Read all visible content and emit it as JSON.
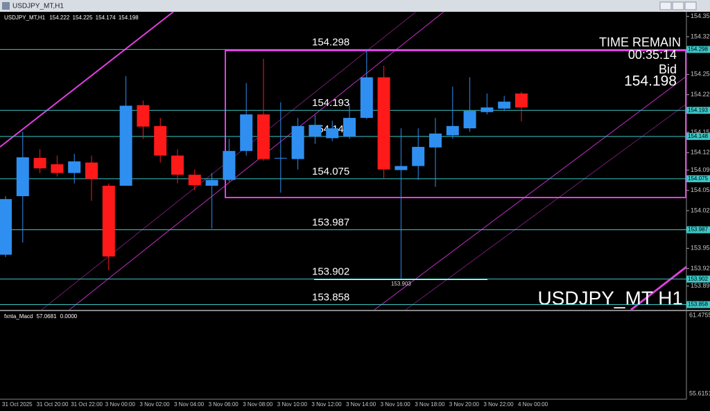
{
  "window": {
    "title": "USDJPY_MT,H1"
  },
  "chart_data": {
    "type": "candlestick",
    "symbol": "USDJPY_MT,H1",
    "watermark": "USDJPY_MT H1",
    "x": [
      "31 Oct 2025",
      null,
      "31 Oct 20:00",
      null,
      "31 Oct 22:00",
      null,
      "3 Nov 00:00",
      null,
      "3 Nov 02:00",
      null,
      "3 Nov 04:00",
      null,
      "3 Nov 06:00",
      null,
      "3 Nov 08:00",
      null,
      "3 Nov 10:00",
      null,
      "3 Nov 12:00",
      null,
      "3 Nov 14:00",
      null,
      "3 Nov 16:00",
      null,
      "3 Nov 18:00",
      null,
      "3 Nov 20:00",
      null,
      "3 Nov 22:00",
      null,
      "4 Nov 00:00"
    ],
    "open": [
      153.944,
      154.045,
      154.111,
      154.1,
      154.085,
      154.103,
      154.063,
      154.063,
      154.202,
      154.166,
      154.115,
      154.082,
      154.063,
      154.073,
      154.123,
      154.186,
      154.11,
      154.109,
      154.148,
      154.145,
      154.148,
      154.18,
      154.25,
      154.09,
      154.097,
      154.129,
      154.15,
      154.162,
      154.19,
      154.196,
      154.222
    ],
    "high": [
      154.045,
      154.156,
      154.126,
      154.115,
      154.118,
      154.115,
      154.067,
      154.252,
      154.21,
      154.18,
      154.126,
      154.091,
      154.085,
      154.144,
      154.24,
      154.282,
      154.207,
      154.18,
      154.185,
      154.175,
      154.204,
      154.297,
      154.27,
      154.162,
      154.162,
      154.18,
      154.234,
      154.25,
      154.222,
      154.218,
      154.225
    ],
    "low": [
      153.94,
      153.965,
      154.085,
      154.079,
      154.067,
      154.037,
      153.917,
      154.063,
      154.144,
      154.103,
      154.067,
      154.055,
      153.989,
      154.07,
      154.115,
      154.106,
      154.051,
      154.091,
      154.135,
      154.14,
      154.144,
      154.178,
      154.075,
      153.903,
      154.073,
      154.061,
      154.144,
      154.156,
      154.186,
      154.192,
      154.174
    ],
    "close": [
      154.04,
      154.112,
      154.093,
      154.085,
      154.105,
      154.075,
      153.941,
      154.201,
      154.165,
      154.115,
      154.082,
      154.064,
      154.073,
      154.123,
      154.186,
      154.109,
      154.111,
      154.166,
      154.168,
      154.162,
      154.18,
      154.25,
      154.091,
      154.097,
      154.13,
      154.153,
      154.166,
      154.192,
      154.198,
      154.208,
      154.198
    ],
    "up_color": "#2f8ff0",
    "down_color": "#ff1a1a",
    "ylim": [
      153.849,
      154.363
    ],
    "yticks": [
      154.355,
      154.32,
      154.255,
      154.22,
      154.155,
      154.12,
      154.09,
      154.055,
      154.02,
      153.955,
      153.92,
      153.89
    ],
    "levels": [
      154.298,
      154.193,
      154.148,
      154.075,
      153.987,
      153.902,
      153.858
    ],
    "level_color": "#3cc8c8",
    "timer": {
      "title": "TIME REMAIN",
      "time": "00:35:14",
      "price_label": "Bid"
    },
    "macd": {
      "name": "fxnta_Macd",
      "value": 57.0681,
      "signal": "0.0000",
      "ylim": [
        55.6151,
        61.4755
      ]
    }
  }
}
